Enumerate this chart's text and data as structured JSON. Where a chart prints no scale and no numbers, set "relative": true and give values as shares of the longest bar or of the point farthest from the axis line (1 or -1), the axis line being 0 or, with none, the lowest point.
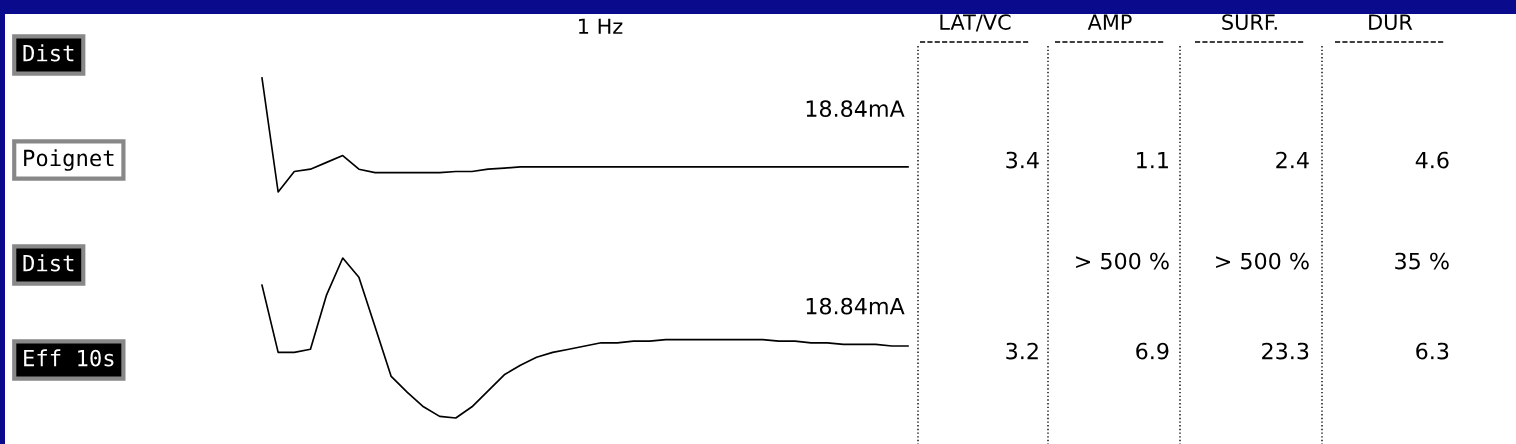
{
  "chart_data": [
    {
      "type": "line",
      "title": "1 Hz",
      "relative": true,
      "categories": [
        null,
        null,
        null,
        null,
        null,
        null,
        null,
        null,
        null,
        null,
        null,
        null,
        null,
        null,
        null,
        null,
        null,
        null,
        null,
        null,
        null,
        null,
        null,
        null,
        null,
        null,
        null,
        null,
        null,
        null,
        null,
        null,
        null,
        null,
        null,
        null,
        null,
        null,
        null,
        null,
        null
      ],
      "series": [
        {
          "color": "#000000",
          "values": [
            1.0,
            0.0,
            0.18,
            0.2,
            0.26,
            0.32,
            0.2,
            0.17,
            0.17,
            0.17,
            0.17,
            0.17,
            0.18,
            0.18,
            0.2,
            0.21,
            0.22,
            0.22,
            0.22,
            0.22,
            0.22,
            0.22,
            0.22,
            0.22,
            0.22,
            0.22,
            0.22,
            0.22,
            0.22,
            0.22,
            0.22,
            0.22,
            0.22,
            0.22,
            0.22,
            0.22,
            0.22,
            0.22,
            0.22,
            0.22,
            0.22
          ]
        }
      ],
      "annotations": [
        "Dist",
        "Poignet",
        "18.84mA"
      ]
    },
    {
      "type": "line",
      "relative": true,
      "categories": [
        null,
        null,
        null,
        null,
        null,
        null,
        null,
        null,
        null,
        null,
        null,
        null,
        null,
        null,
        null,
        null,
        null,
        null,
        null,
        null,
        null,
        null,
        null,
        null,
        null,
        null,
        null,
        null,
        null,
        null,
        null,
        null,
        null,
        null,
        null,
        null,
        null,
        null,
        null,
        null,
        null
      ],
      "series": [
        {
          "color": "#000000",
          "values": [
            0.83,
            0.41,
            0.41,
            0.43,
            0.77,
            1.0,
            0.88,
            0.57,
            0.26,
            0.16,
            0.07,
            0.01,
            0.0,
            0.07,
            0.17,
            0.27,
            0.33,
            0.38,
            0.41,
            0.43,
            0.45,
            0.47,
            0.47,
            0.48,
            0.48,
            0.49,
            0.49,
            0.49,
            0.49,
            0.49,
            0.49,
            0.49,
            0.48,
            0.48,
            0.47,
            0.47,
            0.46,
            0.46,
            0.46,
            0.45,
            0.45
          ]
        }
      ],
      "annotations": [
        "Dist",
        "Eff 10s",
        "18.84mA"
      ]
    },
    {
      "type": "other",
      "categories": [
        "LAT/VC",
        "AMP",
        "SURF.",
        "DUR"
      ],
      "cell_labels": [
        [
          "3.4",
          "1.1",
          "2.4",
          "4.6"
        ],
        [
          null,
          "> 500 %",
          "> 500 %",
          "35 %"
        ],
        [
          "3.2",
          "6.9",
          "23.3",
          "6.3"
        ]
      ]
    }
  ]
}
